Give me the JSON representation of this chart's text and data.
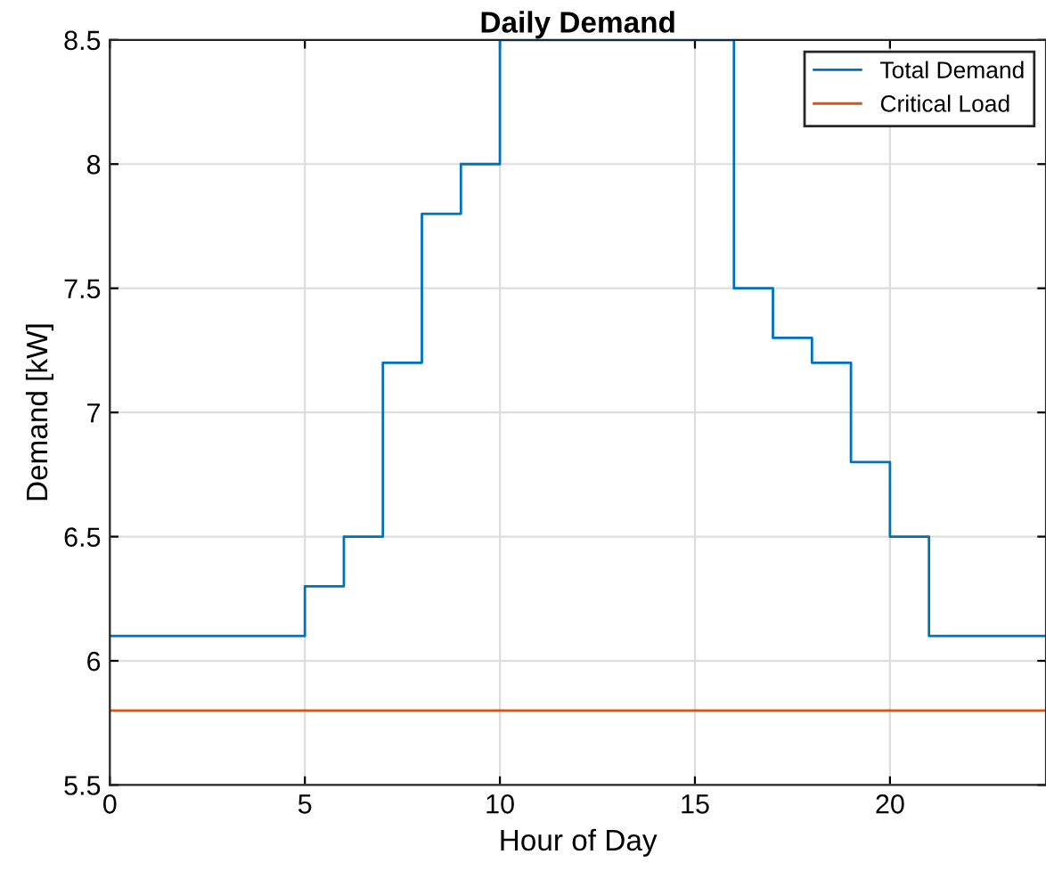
{
  "chart_data": {
    "type": "step",
    "title": "Daily Demand",
    "xlabel": "Hour of Day",
    "ylabel": "Demand [kW]",
    "series": [
      {
        "name": "Total Demand",
        "color": "#0072bd",
        "x": [
          0,
          5,
          6,
          7,
          8,
          9,
          10,
          16,
          17,
          18,
          19,
          20,
          21,
          24
        ],
        "values": [
          6.1,
          6.3,
          6.5,
          7.2,
          7.8,
          8.0,
          8.5,
          7.5,
          7.3,
          7.2,
          6.8,
          6.5,
          6.1,
          6.1
        ]
      },
      {
        "name": "Critical Load",
        "color": "#d95319",
        "type": "line",
        "x": [
          0,
          24
        ],
        "values": [
          5.8,
          5.8
        ]
      }
    ],
    "xlim": [
      0,
      24
    ],
    "xticks": [
      0,
      5,
      10,
      15,
      20
    ],
    "ylim": [
      5.5,
      8.5
    ],
    "yticks": [
      5.5,
      6,
      6.5,
      7,
      7.5,
      8,
      8.5
    ],
    "grid": true,
    "legend": "top right"
  }
}
